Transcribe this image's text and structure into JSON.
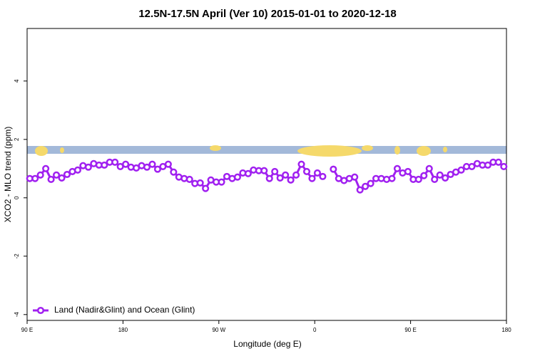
{
  "chart_data": {
    "type": "line",
    "title": "12.5N-17.5N April (Ver 10)   2015-01-01 to 2020-12-18",
    "xlabel": "Longitude (deg E)",
    "ylabel": "XCO2 - MLO trend (ppm)",
    "xlim": [
      90,
      540
    ],
    "ylim": [
      -4.2,
      5.8
    ],
    "xticks": [
      {
        "value": 90,
        "label": "90 E"
      },
      180,
      {
        "value": 270,
        "label": "90 W"
      },
      {
        "value": 360,
        "label": "0"
      },
      {
        "value": 450,
        "label": "90 E"
      },
      {
        "value": 540,
        "label": "180"
      }
    ],
    "yticks": [
      -4,
      -2,
      0,
      2,
      4
    ],
    "legend": "bottom-left",
    "x": [
      92.5,
      97.5,
      102.5,
      107.5,
      112.5,
      117.5,
      122.5,
      127.5,
      132.5,
      137.5,
      142.5,
      147.5,
      152.5,
      157.5,
      162.5,
      167.5,
      172.5,
      177.5,
      182.5,
      187.5,
      192.5,
      197.5,
      202.5,
      207.5,
      212.5,
      217.5,
      222.5,
      227.5,
      232.5,
      237.5,
      242.5,
      247.5,
      252.5,
      257.5,
      262.5,
      267.5,
      272.5,
      277.5,
      282.5,
      287.5,
      292.5,
      297.5,
      302.5,
      307.5,
      312.5,
      317.5,
      322.5,
      327.5,
      332.5,
      337.5,
      342.5,
      347.5,
      352.5,
      357.5,
      362.5,
      367.5,
      372.5,
      377.5,
      382.5,
      387.5,
      392.5,
      397.5,
      402.5,
      407.5,
      412.5,
      417.5,
      422.5,
      427.5,
      432.5,
      437.5,
      442.5,
      447.5,
      452.5,
      457.5,
      462.5,
      467.5,
      472.5,
      477.5,
      482.5,
      487.5,
      492.5,
      497.5,
      502.5,
      507.5,
      512.5,
      517.5,
      522.5,
      527.5,
      532.5,
      537.5
    ],
    "series": [
      {
        "name": "Land (Nadir&Glint) and Ocean (Glint)",
        "color": "#a020f0",
        "values": [
          0.66,
          0.66,
          0.78,
          1.0,
          0.63,
          0.78,
          0.68,
          0.8,
          0.9,
          0.95,
          1.1,
          1.05,
          1.17,
          1.12,
          1.12,
          1.22,
          1.22,
          1.07,
          1.15,
          1.05,
          1.02,
          1.1,
          1.05,
          1.15,
          0.98,
          1.07,
          1.15,
          0.88,
          0.71,
          0.66,
          0.63,
          0.49,
          0.51,
          0.32,
          0.61,
          0.54,
          0.54,
          0.73,
          0.66,
          0.71,
          0.85,
          0.83,
          0.95,
          0.93,
          0.93,
          0.66,
          0.9,
          0.68,
          0.78,
          0.61,
          0.78,
          1.15,
          0.9,
          0.66,
          0.85,
          0.73,
          null,
          0.98,
          0.66,
          0.59,
          0.66,
          0.71,
          0.27,
          0.39,
          0.49,
          0.66,
          0.66,
          0.63,
          0.66,
          1.0,
          0.85,
          0.9,
          0.63,
          0.63,
          0.76,
          1.0,
          0.63,
          0.78,
          0.68,
          0.8,
          0.88,
          0.95,
          1.07,
          1.07,
          1.17,
          1.12,
          1.12,
          1.22,
          1.22,
          1.07
        ]
      }
    ]
  }
}
